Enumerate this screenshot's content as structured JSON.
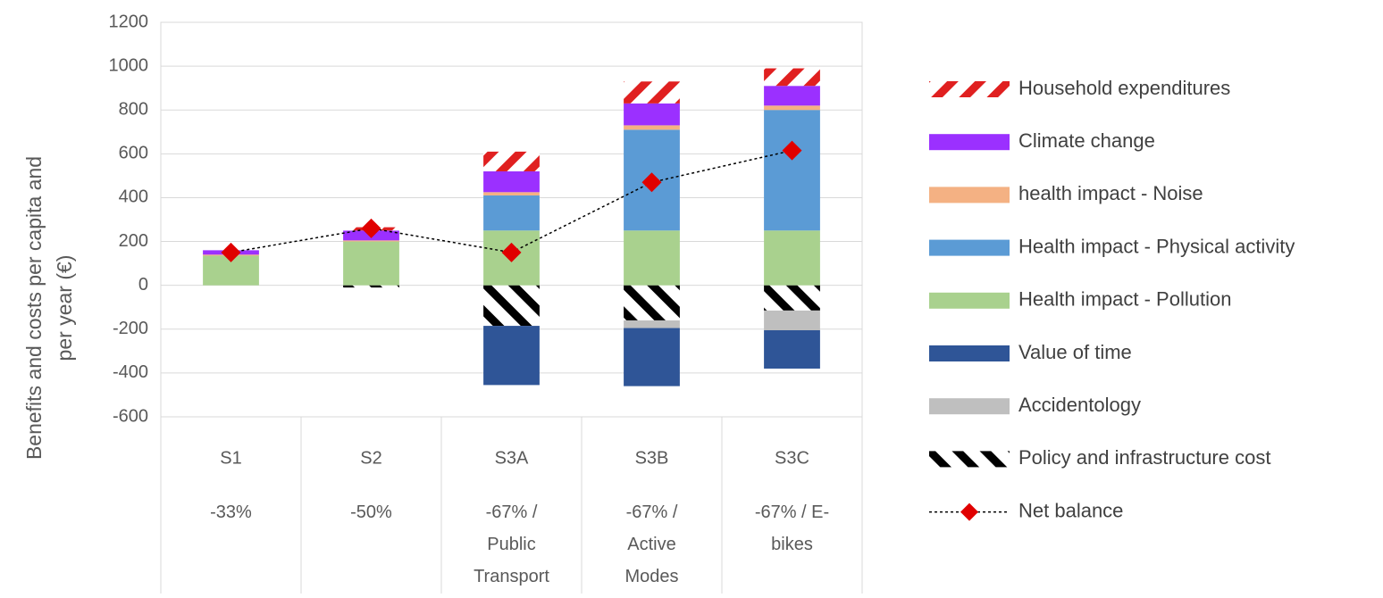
{
  "chart_data": {
    "type": "stacked-bar",
    "y_label": "Benefits and costs per capita and per year (€)",
    "categories": [
      "S1",
      "S2",
      "S3A",
      "S3B",
      "S3C"
    ],
    "category_notes": [
      "-33%",
      "-50%",
      "-67% / Public Transport",
      "-67% / Active Modes",
      "-67% / E-bikes"
    ],
    "ylim": [
      -600,
      1200
    ],
    "yticks": [
      -600,
      -400,
      -200,
      0,
      200,
      400,
      600,
      800,
      1000,
      1200
    ],
    "grid": true,
    "legend": "right",
    "series": [
      {
        "name": "Household expenditures",
        "color": "#e02020",
        "pattern": "backslash",
        "values": [
          0,
          15,
          90,
          100,
          80
        ]
      },
      {
        "name": "Climate change",
        "color": "#9b30ff",
        "values": [
          20,
          45,
          95,
          100,
          90
        ]
      },
      {
        "name": "health impact - Noise",
        "color": "#f4b183",
        "values": [
          5,
          5,
          15,
          20,
          20
        ]
      },
      {
        "name": "Health impact - Physical activity",
        "color": "#5b9bd5",
        "values": [
          0,
          0,
          160,
          460,
          550
        ]
      },
      {
        "name": "Health impact - Pollution",
        "color": "#a9d18e",
        "values": [
          135,
          200,
          250,
          250,
          250
        ]
      },
      {
        "name": "Value of time",
        "color": "#2f5597",
        "values": [
          0,
          0,
          -270,
          -265,
          -175
        ]
      },
      {
        "name": "Accidentology",
        "color": "#bfbfbf",
        "values": [
          0,
          0,
          0,
          -35,
          -90
        ]
      },
      {
        "name": "Policy and infrastructure cost",
        "color": "#000000",
        "pattern": "slash",
        "values": [
          0,
          -10,
          -185,
          -160,
          -115
        ]
      },
      {
        "name": "Net balance",
        "type": "line",
        "color": "#e00000",
        "line_color": "#000000",
        "marker": "diamond",
        "values": [
          150,
          260,
          150,
          470,
          615
        ]
      }
    ]
  }
}
